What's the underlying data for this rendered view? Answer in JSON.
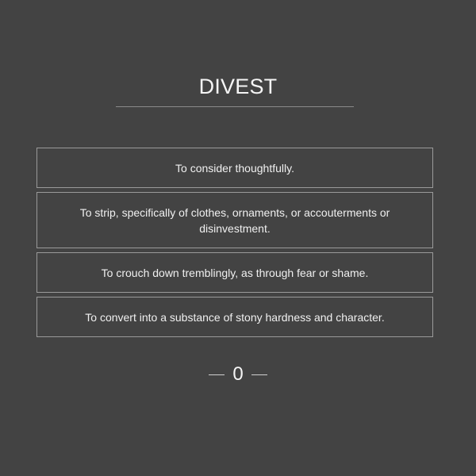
{
  "word": "DIVEST",
  "options": [
    "To consider thoughtfully.",
    "To strip, specifically of clothes, ornaments, or accouterments or disinvestment.",
    "To crouch down tremblingly, as through fear or shame.",
    "To convert into a substance of stony hardness and character."
  ],
  "score": "0"
}
